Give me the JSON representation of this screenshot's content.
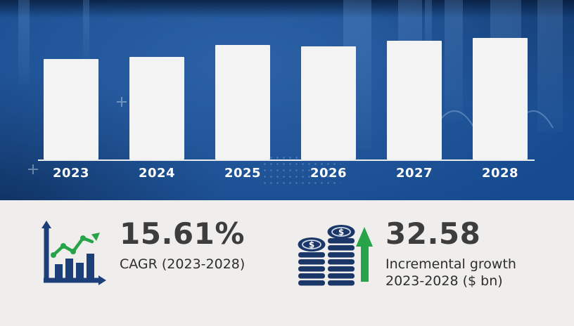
{
  "chart_data": {
    "type": "bar",
    "title": "",
    "xlabel": "",
    "ylabel": "",
    "categories": [
      "2023",
      "2024",
      "2025",
      "2026",
      "2027",
      "2028"
    ],
    "values": [
      143,
      146,
      163,
      161,
      169,
      173
    ],
    "value_note": "bar heights in pixels; no y-axis values or data labels are shown in the image",
    "bar_color": "#f3f3f3",
    "background_color": "#164a8e",
    "grid": "off",
    "legend": "none",
    "axis_line": "white horizontal baseline under bars"
  },
  "stats": {
    "cagr": {
      "value": "15.61%",
      "label": "CAGR (2023-2028)",
      "icon": "growth-chart-icon"
    },
    "incremental": {
      "value": "32.58",
      "label_line1": "Incremental growth",
      "label_line2": "2023-2028 ($ bn)",
      "icon": "coins-with-up-arrow-icon"
    }
  },
  "colors": {
    "accent_green": "#27a449",
    "icon_navy": "#1d3f79",
    "coin_navy": "#1b3768",
    "chart_background": "#164a8e",
    "stats_background": "#efeeec",
    "text_dark": "#3d3d3d",
    "bar_white": "#f3f3f3"
  }
}
